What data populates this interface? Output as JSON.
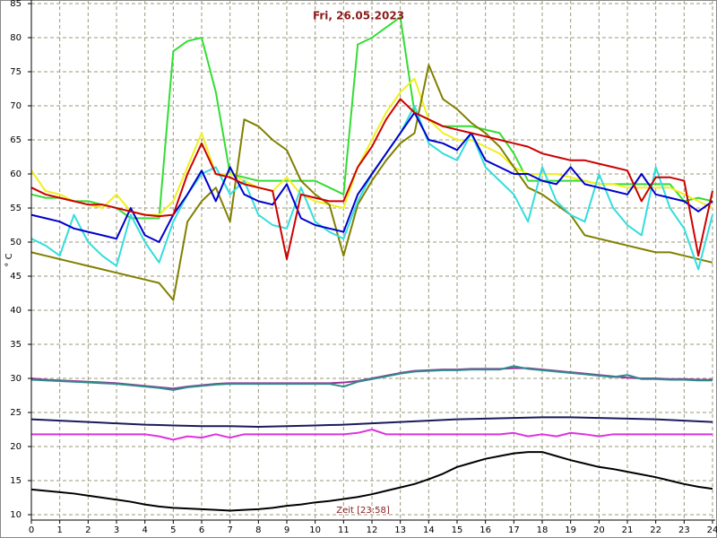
{
  "chart_data": {
    "type": "line",
    "title": "Fri, 26.05.2023",
    "x_label": "Zeit [23:58]",
    "y_label": "° C",
    "x": [
      0,
      0.5,
      1,
      1.5,
      2,
      2.5,
      3,
      3.5,
      4,
      4.5,
      5,
      5.5,
      6,
      6.5,
      7,
      7.5,
      8,
      8.5,
      9,
      9.5,
      10,
      10.5,
      11,
      11.5,
      12,
      12.5,
      13,
      13.5,
      14,
      14.5,
      15,
      15.5,
      16,
      16.5,
      17,
      17.5,
      18,
      18.5,
      19,
      19.5,
      20,
      20.5,
      21,
      21.5,
      22,
      22.5,
      23,
      23.5,
      24
    ],
    "xlim": [
      0,
      24
    ],
    "xticks": [
      0,
      1,
      2,
      3,
      4,
      5,
      6,
      7,
      8,
      9,
      10,
      11,
      12,
      13,
      14,
      15,
      16,
      17,
      18,
      19,
      20,
      21,
      22,
      23,
      24
    ],
    "ylim": [
      10,
      85
    ],
    "yticks": [
      10,
      15,
      20,
      25,
      30,
      35,
      40,
      45,
      50,
      55,
      60,
      65,
      70,
      75,
      80,
      85
    ],
    "grid": true,
    "series": [
      {
        "color": "#33dd33",
        "values": [
          57,
          56.5,
          56.5,
          56,
          56,
          55.5,
          55,
          53.5,
          53.5,
          53.5,
          78,
          79.5,
          80,
          72,
          60,
          59.5,
          59,
          59,
          59,
          59,
          59,
          58,
          57,
          79,
          80,
          81.5,
          83,
          69,
          68,
          67,
          67,
          67,
          66.5,
          66,
          63,
          59,
          59,
          59,
          59,
          59,
          58.5,
          58.5,
          58.5,
          58.5,
          58.5,
          58.5,
          56,
          56.5,
          56
        ]
      },
      {
        "color": "#f0f020",
        "values": [
          60.5,
          57.5,
          57,
          56,
          55.5,
          55,
          57,
          54.5,
          54,
          54,
          56,
          61,
          66,
          60,
          60,
          59,
          58,
          57.5,
          59.5,
          57,
          56,
          55.5,
          55,
          61,
          65,
          69,
          72,
          74,
          68,
          66,
          65,
          65,
          64,
          63,
          61,
          60,
          60,
          60,
          59.5,
          59,
          58.5,
          58.5,
          58,
          58,
          58,
          58,
          57,
          56,
          55
        ]
      },
      {
        "color": "#808000",
        "values": [
          48.5,
          48,
          47.5,
          47,
          46.5,
          46,
          45.5,
          45,
          44.5,
          44,
          41.5,
          53,
          56,
          58,
          53,
          68,
          67,
          65,
          63.5,
          59,
          57,
          55.5,
          48,
          55.5,
          59,
          62,
          64.5,
          66,
          76,
          71,
          69.5,
          67.5,
          66,
          64,
          61,
          58,
          57,
          55.5,
          54,
          51,
          50.5,
          50,
          49.5,
          49,
          48.5,
          48.5,
          48,
          47.5,
          47
        ]
      },
      {
        "color": "#33dddd",
        "values": [
          50.5,
          49.5,
          48,
          54,
          50,
          48,
          46.5,
          54,
          50,
          47,
          53,
          57,
          60,
          61,
          57,
          59,
          54,
          52.5,
          52,
          58,
          53,
          51.5,
          50.5,
          56,
          60,
          63,
          66,
          70,
          64.5,
          63,
          62,
          66,
          61,
          59,
          57,
          53,
          61,
          56,
          54,
          53,
          60,
          55,
          52.5,
          51,
          61,
          55,
          52,
          46,
          54
        ]
      },
      {
        "color": "#0000cc",
        "values": [
          54,
          53.5,
          53,
          52,
          51.5,
          51,
          50.5,
          55,
          51,
          50,
          54,
          57,
          60.5,
          56,
          61,
          57,
          56,
          55.5,
          58.5,
          53.5,
          52.5,
          52,
          51.5,
          57,
          60,
          63,
          66,
          69,
          65,
          64.5,
          63.5,
          66,
          62,
          61,
          60,
          60,
          59,
          58.5,
          61,
          58.5,
          58,
          57.5,
          57,
          60,
          57,
          56.5,
          56,
          54.5,
          56
        ]
      },
      {
        "color": "#cc0000",
        "values": [
          58,
          57,
          56.5,
          56,
          55.5,
          55.5,
          55,
          54.5,
          54,
          53.8,
          54,
          60,
          64.5,
          60,
          59.5,
          58.5,
          58,
          57.5,
          47.5,
          57,
          56.5,
          56,
          56,
          61,
          64,
          68,
          71,
          69,
          68,
          67,
          66.5,
          66,
          65.5,
          65,
          64.5,
          64,
          63,
          62.5,
          62,
          62,
          61.5,
          61,
          60.5,
          56,
          59.5,
          59.5,
          59,
          48,
          57.5
        ]
      },
      {
        "color": "#993399",
        "values": [
          30,
          29.8,
          29.7,
          29.6,
          29.5,
          29.4,
          29.3,
          29.1,
          28.9,
          28.7,
          28.5,
          28.8,
          29,
          29.2,
          29.3,
          29.3,
          29.3,
          29.3,
          29.3,
          29.3,
          29.3,
          29.3,
          29.4,
          29.6,
          30,
          30.4,
          30.8,
          31.1,
          31.2,
          31.3,
          31.3,
          31.4,
          31.4,
          31.4,
          31.5,
          31.5,
          31.3,
          31.1,
          30.9,
          30.7,
          30.5,
          30.3,
          30.1,
          30,
          30,
          29.9,
          29.9,
          29.8,
          29.8
        ]
      },
      {
        "color": "#2e8b8b",
        "values": [
          29.8,
          29.7,
          29.6,
          29.5,
          29.4,
          29.3,
          29.2,
          29,
          28.8,
          28.6,
          28.3,
          28.7,
          28.9,
          29.1,
          29.2,
          29.2,
          29.2,
          29.2,
          29.2,
          29.2,
          29.2,
          29.2,
          28.8,
          29.5,
          29.9,
          30.3,
          30.7,
          31,
          31.1,
          31.2,
          31.2,
          31.3,
          31.3,
          31.3,
          31.8,
          31.4,
          31.2,
          31,
          30.8,
          30.6,
          30.4,
          30.2,
          30.5,
          29.9,
          29.9,
          29.8,
          29.8,
          29.7,
          29.7
        ]
      },
      {
        "color": "#1a1a5e",
        "values": [
          24,
          23.9,
          23.8,
          23.7,
          23.6,
          23.5,
          23.4,
          23.3,
          23.2,
          23.15,
          23.1,
          23.05,
          23,
          23,
          23,
          22.95,
          22.9,
          22.95,
          23,
          23.05,
          23.1,
          23.15,
          23.2,
          23.3,
          23.4,
          23.5,
          23.6,
          23.7,
          23.8,
          23.9,
          24,
          24.05,
          24.1,
          24.15,
          24.2,
          24.25,
          24.3,
          24.3,
          24.3,
          24.25,
          24.2,
          24.15,
          24.1,
          24.05,
          24,
          23.9,
          23.8,
          23.7,
          23.6
        ]
      },
      {
        "color": "#dd33dd",
        "values": [
          21.8,
          21.8,
          21.8,
          21.8,
          21.8,
          21.8,
          21.8,
          21.8,
          21.8,
          21.5,
          21,
          21.5,
          21.3,
          21.8,
          21.3,
          21.8,
          21.8,
          21.8,
          21.8,
          21.8,
          21.8,
          21.8,
          21.8,
          22,
          22.5,
          21.8,
          21.8,
          21.8,
          21.8,
          21.8,
          21.8,
          21.8,
          21.8,
          21.8,
          22,
          21.5,
          21.8,
          21.5,
          22,
          21.8,
          21.5,
          21.8,
          21.8,
          21.8,
          21.8,
          21.8,
          21.8,
          21.8,
          21.8
        ]
      },
      {
        "color": "#000000",
        "values": [
          13.7,
          13.5,
          13.3,
          13.1,
          12.8,
          12.5,
          12.2,
          11.9,
          11.5,
          11.2,
          11,
          10.9,
          10.8,
          10.7,
          10.6,
          10.7,
          10.8,
          11,
          11.3,
          11.5,
          11.8,
          12,
          12.3,
          12.6,
          13,
          13.5,
          14,
          14.5,
          15.2,
          16,
          17,
          17.6,
          18.2,
          18.6,
          19,
          19.2,
          19.2,
          18.6,
          18,
          17.5,
          17,
          16.7,
          16.3,
          15.9,
          15.5,
          15,
          14.5,
          14.1,
          13.8
        ]
      }
    ]
  }
}
